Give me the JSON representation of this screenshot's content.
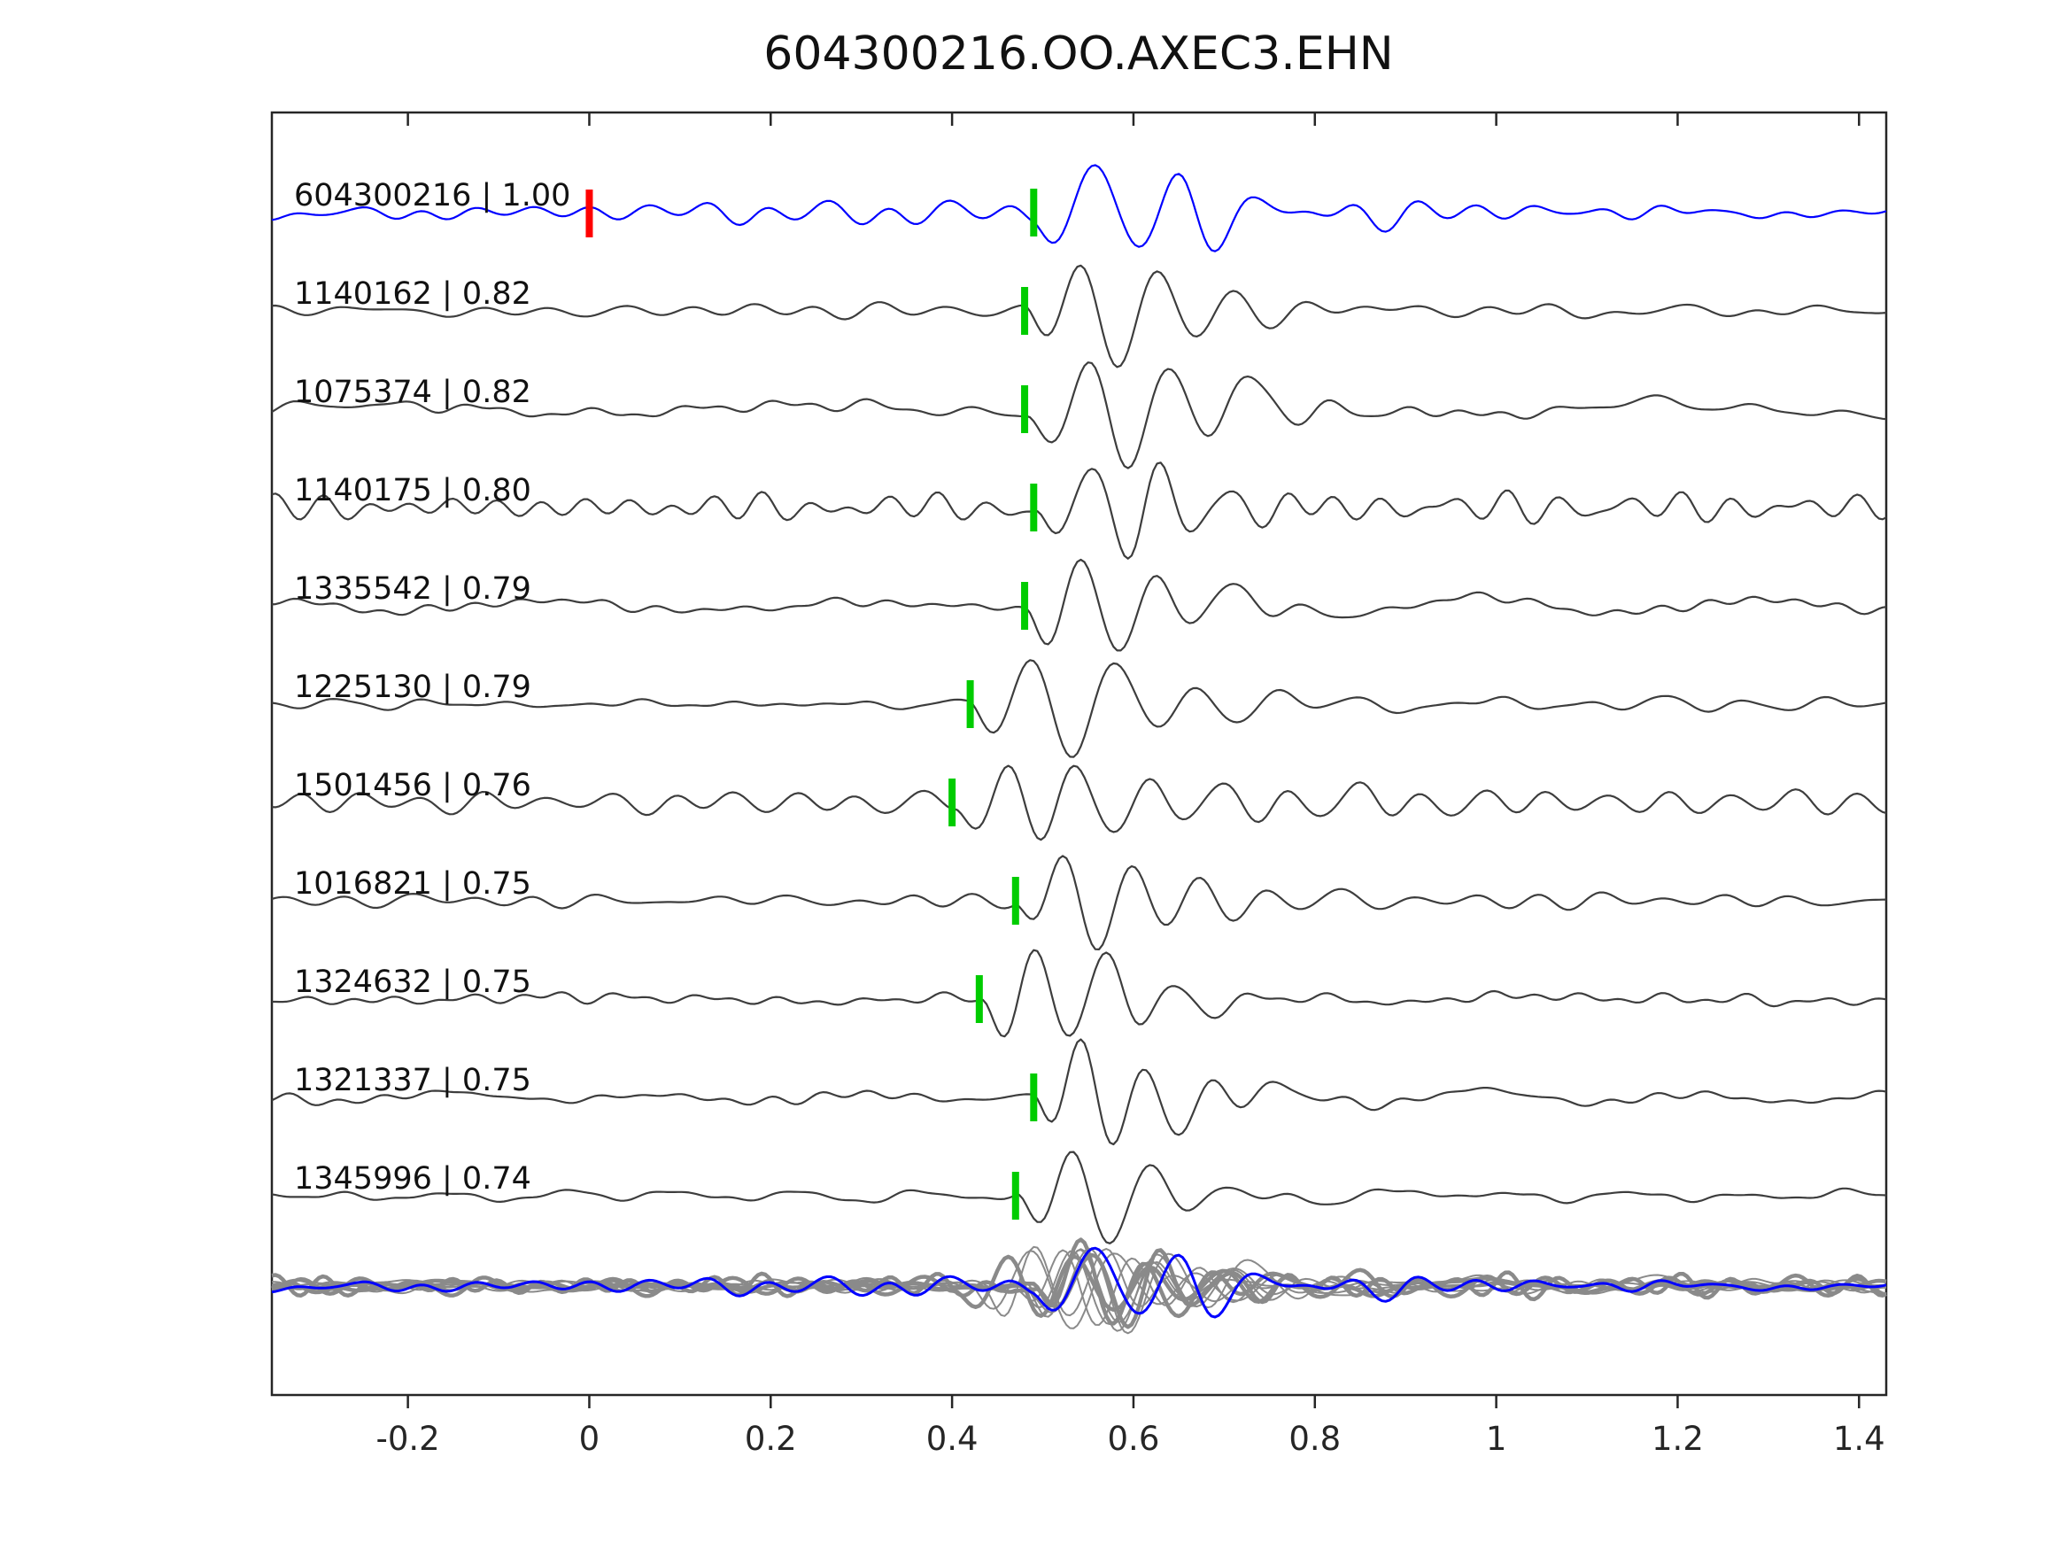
{
  "chart_data": {
    "type": "line",
    "title": "604300216.OO.AXEC3.EHN",
    "xlabel": "",
    "ylabel": "",
    "xlim": [
      -0.35,
      1.43
    ],
    "grid": false,
    "legend_position": "none",
    "xticks": [
      {
        "value": -0.2,
        "label": "-0.2"
      },
      {
        "value": 0,
        "label": "0"
      },
      {
        "value": 0.2,
        "label": "0.2"
      },
      {
        "value": 0.4,
        "label": "0.4"
      },
      {
        "value": 0.6,
        "label": "0.6"
      },
      {
        "value": 0.8,
        "label": "0.8"
      },
      {
        "value": 1,
        "label": "1"
      },
      {
        "value": 1.2,
        "label": "1.2"
      },
      {
        "value": 1.4,
        "label": "1.4"
      }
    ],
    "colors": {
      "template_trace": "#0000ff",
      "match_trace": "#3d3d3d",
      "overlay_trace": "#8a8a8a",
      "pick_marker": "#00cc00",
      "reference_marker": "#ff0000",
      "axes_frame": "#262626"
    },
    "traces": [
      {
        "id": "604300216",
        "correlation": "1.00",
        "display": "604300216 | 1.00",
        "pick_time": 0.49,
        "is_template": true,
        "reference_marker_time": 0.0
      },
      {
        "id": "1140162",
        "correlation": "0.82",
        "display": "1140162 | 0.82",
        "pick_time": 0.48,
        "is_template": false
      },
      {
        "id": "1075374",
        "correlation": "0.82",
        "display": "1075374 | 0.82",
        "pick_time": 0.48,
        "is_template": false
      },
      {
        "id": "1140175",
        "correlation": "0.80",
        "display": "1140175 | 0.80",
        "pick_time": 0.49,
        "is_template": false
      },
      {
        "id": "1335542",
        "correlation": "0.79",
        "display": "1335542 | 0.79",
        "pick_time": 0.48,
        "is_template": false
      },
      {
        "id": "1225130",
        "correlation": "0.79",
        "display": "1225130 | 0.79",
        "pick_time": 0.42,
        "is_template": false
      },
      {
        "id": "1501456",
        "correlation": "0.76",
        "display": "1501456 | 0.76",
        "pick_time": 0.4,
        "is_template": false
      },
      {
        "id": "1016821",
        "correlation": "0.75",
        "display": "1016821 | 0.75",
        "pick_time": 0.47,
        "is_template": false
      },
      {
        "id": "1324632",
        "correlation": "0.75",
        "display": "1324632 | 0.75",
        "pick_time": 0.43,
        "is_template": false
      },
      {
        "id": "1321337",
        "correlation": "0.75",
        "display": "1321337 | 0.75",
        "pick_time": 0.49,
        "is_template": false
      },
      {
        "id": "1345996",
        "correlation": "0.74",
        "display": "1345996 | 0.74",
        "pick_time": 0.47,
        "is_template": false
      }
    ],
    "overlay_row": {
      "description": "all traces superimposed, template in blue over gray matches",
      "has_markers": false
    }
  }
}
